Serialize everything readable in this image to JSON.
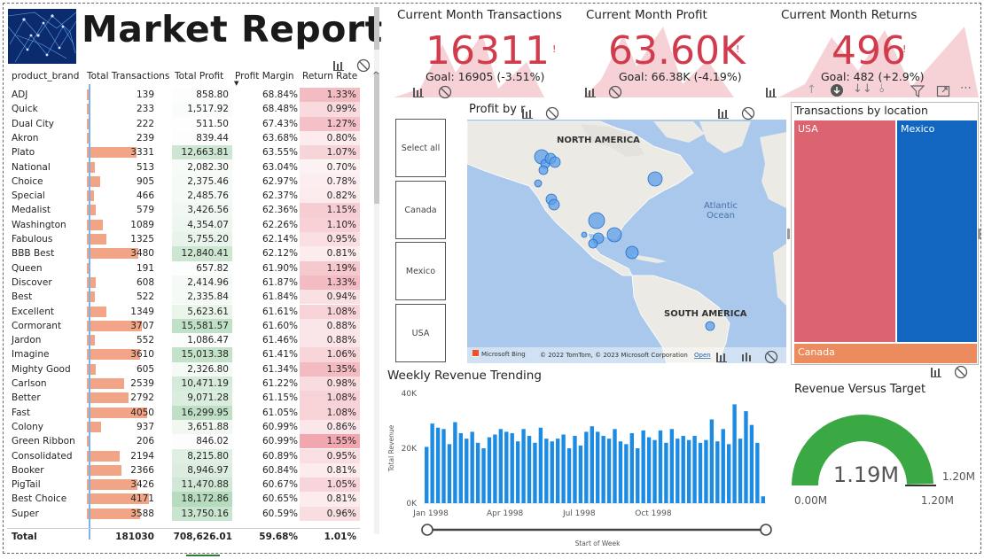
{
  "header": {
    "title": "Market Report"
  },
  "table": {
    "columns": [
      "product_brand",
      "Total Transactions",
      "Total Profit",
      "Profit Margin",
      "Return Rate"
    ],
    "rows": [
      {
        "brand": "ADJ",
        "transactions": "139",
        "profit": "858.80",
        "margin": "68.84%",
        "returns": "1.33%"
      },
      {
        "brand": "Quick",
        "transactions": "233",
        "profit": "1,517.92",
        "margin": "68.48%",
        "returns": "0.99%"
      },
      {
        "brand": "Dual City",
        "transactions": "222",
        "profit": "511.50",
        "margin": "67.43%",
        "returns": "1.27%"
      },
      {
        "brand": "Akron",
        "transactions": "239",
        "profit": "839.44",
        "margin": "63.68%",
        "returns": "0.80%"
      },
      {
        "brand": "Plato",
        "transactions": "3331",
        "profit": "12,663.81",
        "margin": "63.55%",
        "returns": "1.07%"
      },
      {
        "brand": "National",
        "transactions": "513",
        "profit": "2,082.30",
        "margin": "63.04%",
        "returns": "0.70%"
      },
      {
        "brand": "Choice",
        "transactions": "905",
        "profit": "2,375.46",
        "margin": "62.97%",
        "returns": "0.78%"
      },
      {
        "brand": "Special",
        "transactions": "466",
        "profit": "2,485.76",
        "margin": "62.37%",
        "returns": "0.82%"
      },
      {
        "brand": "Medalist",
        "transactions": "579",
        "profit": "3,426.56",
        "margin": "62.36%",
        "returns": "1.15%"
      },
      {
        "brand": "Washington",
        "transactions": "1089",
        "profit": "4,354.07",
        "margin": "62.26%",
        "returns": "1.10%"
      },
      {
        "brand": "Fabulous",
        "transactions": "1325",
        "profit": "5,755.20",
        "margin": "62.14%",
        "returns": "0.95%"
      },
      {
        "brand": "BBB Best",
        "transactions": "3480",
        "profit": "12,840.41",
        "margin": "62.12%",
        "returns": "0.81%"
      },
      {
        "brand": "Queen",
        "transactions": "191",
        "profit": "657.82",
        "margin": "61.90%",
        "returns": "1.19%"
      },
      {
        "brand": "Discover",
        "transactions": "608",
        "profit": "2,414.96",
        "margin": "61.87%",
        "returns": "1.33%"
      },
      {
        "brand": "Best",
        "transactions": "522",
        "profit": "2,335.84",
        "margin": "61.84%",
        "returns": "0.94%"
      },
      {
        "brand": "Excellent",
        "transactions": "1349",
        "profit": "5,623.61",
        "margin": "61.61%",
        "returns": "1.08%"
      },
      {
        "brand": "Cormorant",
        "transactions": "3707",
        "profit": "15,581.57",
        "margin": "61.60%",
        "returns": "0.88%"
      },
      {
        "brand": "Jardon",
        "transactions": "552",
        "profit": "1,086.47",
        "margin": "61.46%",
        "returns": "0.88%"
      },
      {
        "brand": "Imagine",
        "transactions": "3610",
        "profit": "15,013.38",
        "margin": "61.41%",
        "returns": "1.06%"
      },
      {
        "brand": "Mighty Good",
        "transactions": "605",
        "profit": "2,326.80",
        "margin": "61.34%",
        "returns": "1.35%"
      },
      {
        "brand": "Carlson",
        "transactions": "2539",
        "profit": "10,471.19",
        "margin": "61.22%",
        "returns": "0.98%"
      },
      {
        "brand": "Better",
        "transactions": "2792",
        "profit": "9,071.28",
        "margin": "61.15%",
        "returns": "1.08%"
      },
      {
        "brand": "Fast",
        "transactions": "4050",
        "profit": "16,299.95",
        "margin": "61.05%",
        "returns": "1.08%"
      },
      {
        "brand": "Colony",
        "transactions": "937",
        "profit": "3,651.88",
        "margin": "60.99%",
        "returns": "0.86%"
      },
      {
        "brand": "Green Ribbon",
        "transactions": "206",
        "profit": "846.02",
        "margin": "60.99%",
        "returns": "1.55%"
      },
      {
        "brand": "Consolidated",
        "transactions": "2194",
        "profit": "8,215.80",
        "margin": "60.89%",
        "returns": "0.95%"
      },
      {
        "brand": "Booker",
        "transactions": "2366",
        "profit": "8,946.97",
        "margin": "60.84%",
        "returns": "0.81%"
      },
      {
        "brand": "PigTail",
        "transactions": "3426",
        "profit": "11,470.88",
        "margin": "60.67%",
        "returns": "1.05%"
      },
      {
        "brand": "Best Choice",
        "transactions": "4171",
        "profit": "18,172.86",
        "margin": "60.65%",
        "returns": "0.81%"
      },
      {
        "brand": "Super",
        "transactions": "3588",
        "profit": "13,750.16",
        "margin": "60.59%",
        "returns": "0.96%"
      }
    ],
    "total": {
      "label": "Total",
      "transactions": "181030",
      "profit": "708,626.01",
      "margin": "59.68%",
      "returns": "1.01%"
    }
  },
  "kpis": [
    {
      "title": "Current Month Transactions",
      "value": "16311",
      "goal": "Goal: 16905 (-3.51%)"
    },
    {
      "title": "Current Month Profit",
      "value": "63.60K",
      "goal": "Goal: 66.38K (-4.19%)"
    },
    {
      "title": "Current Month Returns",
      "value": "496",
      "goal": "Goal: 482 (+2.9%)"
    }
  ],
  "slicer": {
    "items": [
      "Select all",
      "Canada",
      "Mexico",
      "USA"
    ]
  },
  "map": {
    "title": "Profit by r",
    "labels": {
      "north_america": "NORTH AMERICA",
      "south_america": "SOUTH AMERICA",
      "atlantic": "Atlantic",
      "ocean": "Ocean"
    },
    "attribution": "© 2022 TomTom, © 2023 Microsoft Corporation",
    "attribution_link": "Open",
    "bing": "Microsoft Bing"
  },
  "treemap": {
    "title": "Transactions by location",
    "cells": [
      {
        "label": "USA",
        "color": "#dc6470"
      },
      {
        "label": "Mexico",
        "color": "#1366c0"
      },
      {
        "label": "Canada",
        "color": "#ec8b5e"
      }
    ]
  },
  "chart_data": [
    {
      "type": "bar",
      "title": "Weekly Revenue Trending",
      "xlabel": "Start of Week",
      "ylabel": "Total Revenue",
      "ylim": [
        0,
        40000
      ],
      "yticks": [
        "0K",
        "20K",
        "40K"
      ],
      "xticks": [
        "Jan 1998",
        "Apr 1998",
        "Jul 1998",
        "Oct 1998"
      ],
      "values": [
        20500,
        29000,
        27500,
        27000,
        21500,
        29500,
        25500,
        23500,
        26000,
        22000,
        20000,
        24000,
        25000,
        27000,
        26000,
        25500,
        22500,
        27000,
        24500,
        22000,
        27500,
        23500,
        22500,
        23500,
        25000,
        20000,
        24500,
        21000,
        26000,
        28000,
        26000,
        24500,
        23500,
        27000,
        22500,
        21500,
        25500,
        20000,
        26500,
        24000,
        23000,
        26500,
        22000,
        27000,
        23500,
        24500,
        23000,
        24500,
        22000,
        23000,
        30500,
        22500,
        27000,
        21500,
        36000,
        23500,
        33500,
        28500,
        22000,
        2500
      ]
    },
    {
      "type": "gauge",
      "title": "Revenue Versus Target",
      "value": "1.19M",
      "min": "0.00M",
      "max": "1.20M",
      "target": "1.20M",
      "fraction": 0.9917,
      "color": "#3aa843"
    }
  ],
  "colors": {
    "kpi_red": "#d13b4b",
    "bar_salmon": "#f1a486",
    "profit_green": "#c5e3cd",
    "returns_red": "#f3b0b7",
    "weekly_blue": "#1b8be4"
  }
}
